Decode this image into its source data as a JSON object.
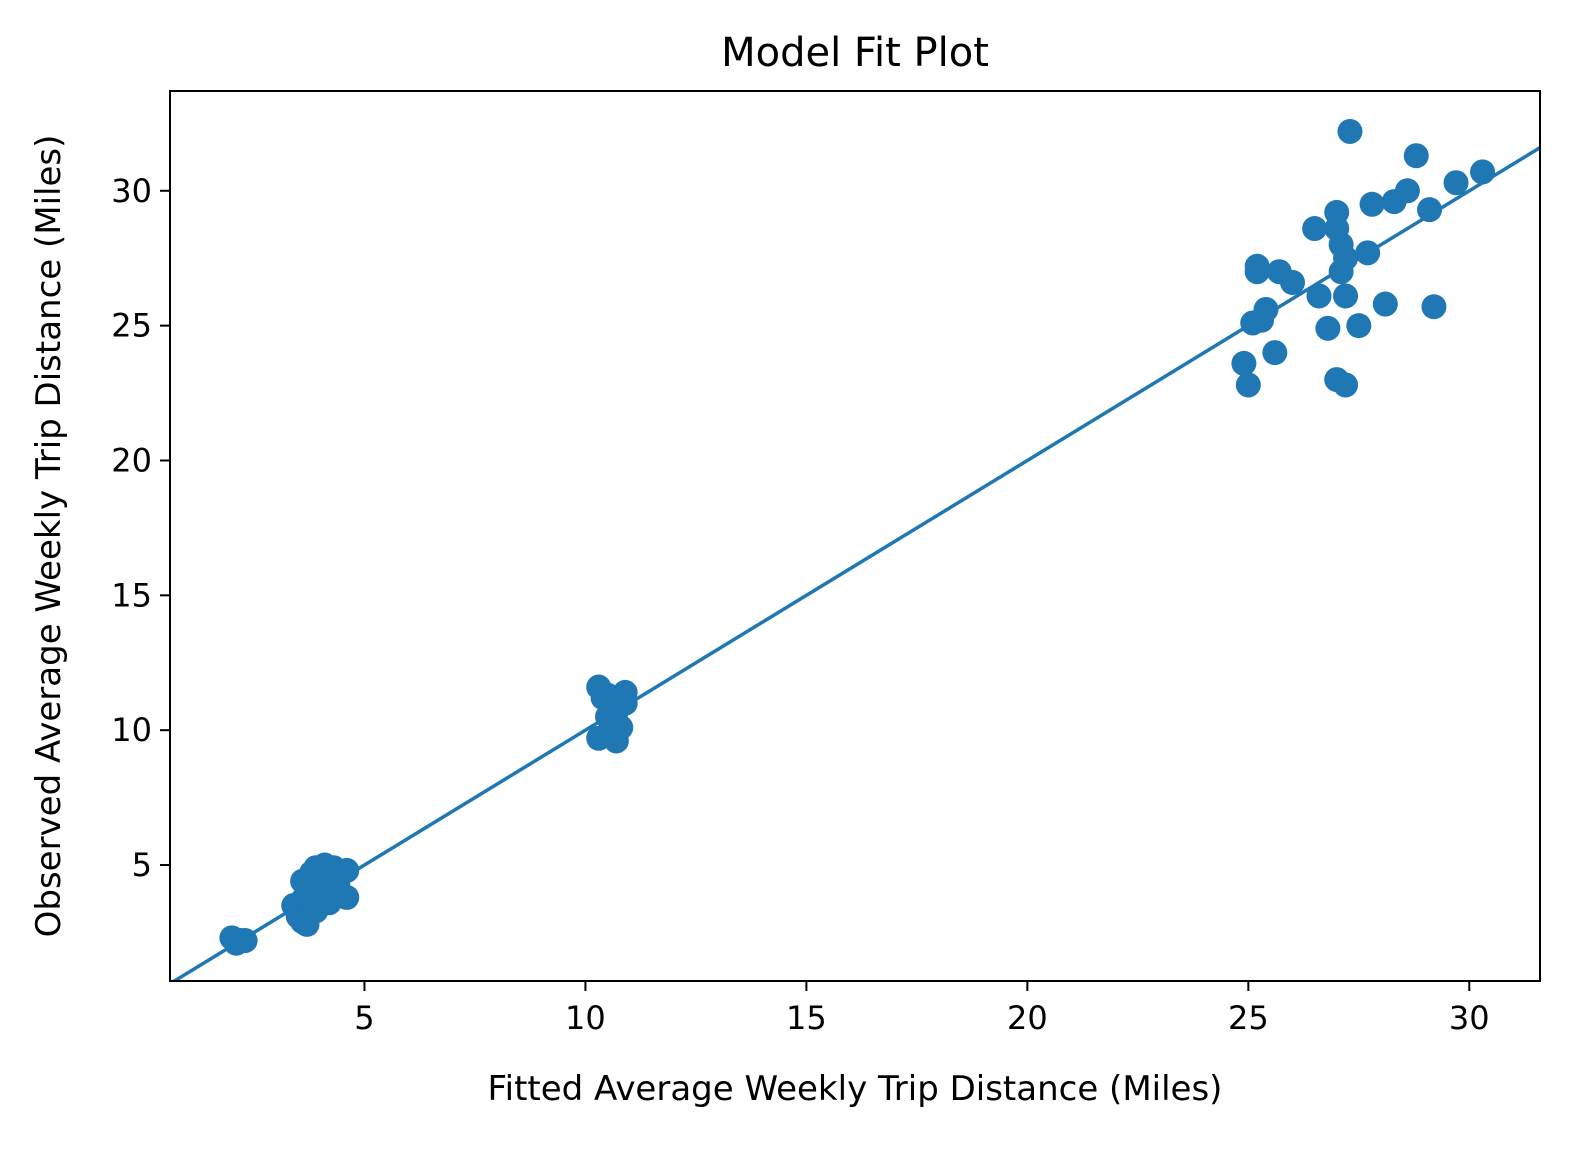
{
  "chart_data": {
    "type": "scatter",
    "title": "Model Fit Plot",
    "xlabel": "Fitted Average Weekly Trip Distance (Miles)",
    "ylabel": "Observed Average Weekly Trip Distance (Miles)",
    "xlim": [
      0.6,
      31.6
    ],
    "ylim": [
      0.7,
      33.7
    ],
    "xticks": [
      5,
      10,
      15,
      20,
      25,
      30
    ],
    "yticks": [
      5,
      10,
      15,
      20,
      25,
      30
    ],
    "grid": false,
    "color": "#1f77b4",
    "reference_line": {
      "slope": 1,
      "intercept": 0
    },
    "points": [
      [
        2.0,
        2.3
      ],
      [
        2.1,
        2.1
      ],
      [
        2.3,
        2.2
      ],
      [
        2.2,
        2.2
      ],
      [
        3.4,
        3.5
      ],
      [
        3.5,
        3.1
      ],
      [
        3.6,
        2.9
      ],
      [
        3.7,
        2.8
      ],
      [
        3.6,
        3.7
      ],
      [
        3.7,
        4.3
      ],
      [
        3.8,
        4.1
      ],
      [
        3.8,
        3.5
      ],
      [
        3.9,
        3.3
      ],
      [
        4.0,
        4.6
      ],
      [
        4.0,
        3.9
      ],
      [
        4.1,
        5.0
      ],
      [
        4.1,
        4.3
      ],
      [
        4.2,
        3.6
      ],
      [
        4.3,
        4.9
      ],
      [
        4.3,
        4.0
      ],
      [
        4.4,
        4.4
      ],
      [
        4.4,
        4.2
      ],
      [
        4.6,
        4.8
      ],
      [
        4.6,
        3.8
      ],
      [
        3.8,
        4.7
      ],
      [
        3.9,
        4.9
      ],
      [
        3.6,
        4.4
      ],
      [
        3.7,
        3.9
      ],
      [
        10.3,
        11.6
      ],
      [
        10.4,
        11.2
      ],
      [
        10.3,
        9.7
      ],
      [
        10.5,
        10.5
      ],
      [
        10.6,
        11.0
      ],
      [
        10.6,
        10.0
      ],
      [
        10.7,
        9.6
      ],
      [
        10.7,
        10.7
      ],
      [
        10.8,
        10.1
      ],
      [
        10.9,
        11.4
      ],
      [
        10.9,
        11.0
      ],
      [
        10.5,
        11.3
      ],
      [
        10.6,
        10.4
      ],
      [
        24.9,
        23.6
      ],
      [
        25.0,
        22.8
      ],
      [
        25.1,
        25.1
      ],
      [
        25.2,
        27.0
      ],
      [
        25.2,
        27.2
      ],
      [
        25.3,
        25.2
      ],
      [
        25.4,
        25.6
      ],
      [
        25.6,
        24.0
      ],
      [
        25.7,
        27.0
      ],
      [
        26.0,
        26.6
      ],
      [
        26.5,
        28.6
      ],
      [
        26.6,
        26.1
      ],
      [
        26.8,
        24.9
      ],
      [
        27.0,
        29.2
      ],
      [
        27.0,
        28.6
      ],
      [
        27.1,
        28.0
      ],
      [
        27.0,
        23.0
      ],
      [
        27.1,
        27.0
      ],
      [
        27.2,
        27.5
      ],
      [
        27.2,
        26.1
      ],
      [
        27.2,
        22.8
      ],
      [
        27.3,
        32.2
      ],
      [
        27.5,
        25.0
      ],
      [
        27.7,
        27.7
      ],
      [
        27.8,
        29.5
      ],
      [
        28.1,
        25.8
      ],
      [
        28.3,
        29.6
      ],
      [
        28.6,
        30.0
      ],
      [
        28.8,
        31.3
      ],
      [
        29.1,
        29.3
      ],
      [
        29.2,
        25.7
      ],
      [
        29.7,
        30.3
      ],
      [
        30.3,
        30.7
      ]
    ]
  }
}
